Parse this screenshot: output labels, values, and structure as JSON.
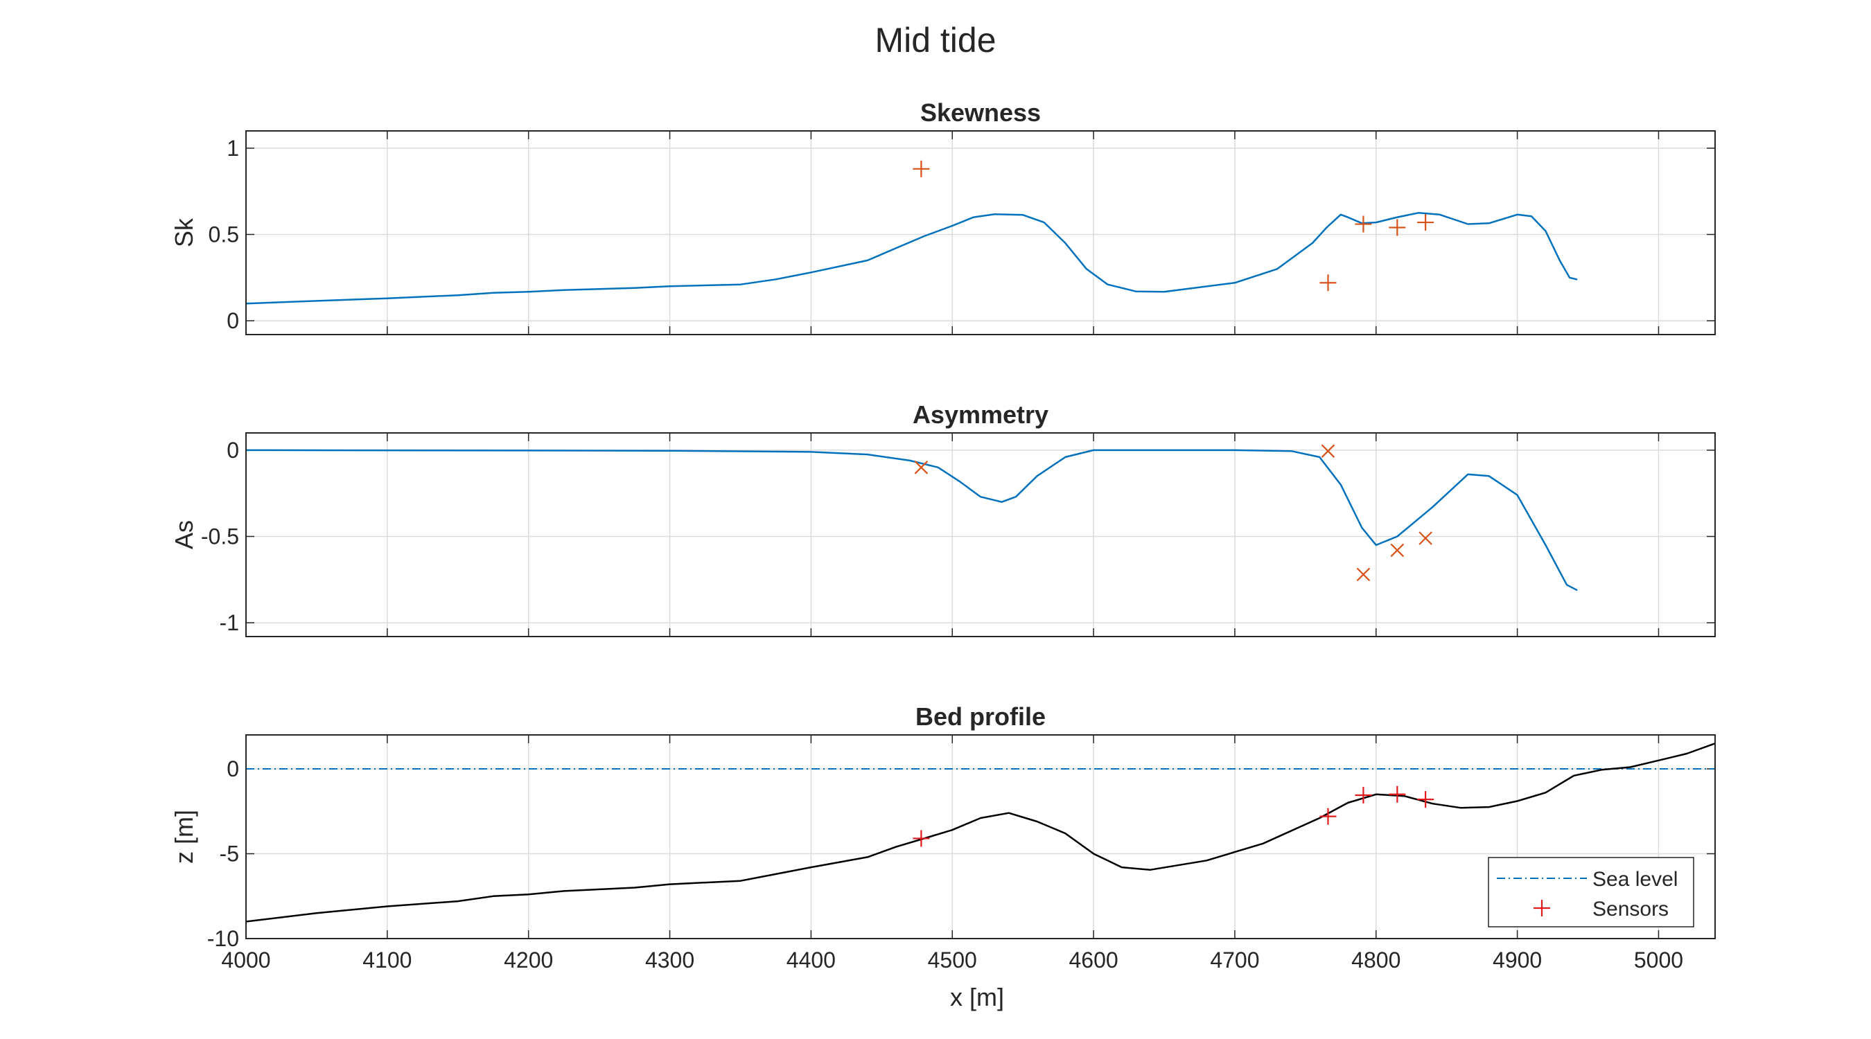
{
  "figure": {
    "title": "Mid tide",
    "xlabel": "x [m]"
  },
  "chart_data": [
    {
      "type": "line",
      "title": "Skewness",
      "xlabel": "",
      "ylabel": "Sk",
      "xlim": [
        4000,
        5040
      ],
      "ylim": [
        -0.08,
        1.1
      ],
      "xticks": [
        4000,
        4100,
        4200,
        4300,
        4400,
        4500,
        4600,
        4700,
        4800,
        4900,
        5000
      ],
      "yticks": [
        0,
        0.5,
        1
      ],
      "ytick_labels": [
        "0",
        "0.5",
        "1"
      ],
      "grid": true,
      "series": [
        {
          "kind": "line",
          "color": "#0072BD",
          "points": [
            [
              4000,
              0.1
            ],
            [
              4050,
              0.115
            ],
            [
              4100,
              0.13
            ],
            [
              4150,
              0.148
            ],
            [
              4175,
              0.162
            ],
            [
              4200,
              0.168
            ],
            [
              4225,
              0.178
            ],
            [
              4275,
              0.19
            ],
            [
              4300,
              0.2
            ],
            [
              4350,
              0.21
            ],
            [
              4375,
              0.24
            ],
            [
              4400,
              0.28
            ],
            [
              4440,
              0.35
            ],
            [
              4460,
              0.42
            ],
            [
              4480,
              0.49
            ],
            [
              4500,
              0.55
            ],
            [
              4515,
              0.6
            ],
            [
              4530,
              0.617
            ],
            [
              4550,
              0.613
            ],
            [
              4565,
              0.57
            ],
            [
              4580,
              0.45
            ],
            [
              4595,
              0.3
            ],
            [
              4610,
              0.21
            ],
            [
              4630,
              0.17
            ],
            [
              4650,
              0.168
            ],
            [
              4700,
              0.22
            ],
            [
              4730,
              0.3
            ],
            [
              4755,
              0.45
            ],
            [
              4765,
              0.54
            ],
            [
              4775,
              0.615
            ],
            [
              4780,
              0.6
            ],
            [
              4790,
              0.565
            ],
            [
              4800,
              0.57
            ],
            [
              4815,
              0.6
            ],
            [
              4830,
              0.625
            ],
            [
              4845,
              0.615
            ],
            [
              4865,
              0.56
            ],
            [
              4880,
              0.565
            ],
            [
              4900,
              0.615
            ],
            [
              4910,
              0.605
            ],
            [
              4920,
              0.52
            ],
            [
              4930,
              0.35
            ],
            [
              4937,
              0.25
            ],
            [
              4942,
              0.24
            ]
          ]
        },
        {
          "kind": "markers",
          "marker": "+",
          "color": "#D95319",
          "points": [
            [
              4478,
              0.88
            ],
            [
              4766,
              0.22
            ],
            [
              4791,
              0.56
            ],
            [
              4815,
              0.54
            ],
            [
              4835,
              0.57
            ]
          ]
        }
      ]
    },
    {
      "type": "line",
      "title": "Asymmetry",
      "xlabel": "",
      "ylabel": "As",
      "xlim": [
        4000,
        5040
      ],
      "ylim": [
        -1.08,
        0.1
      ],
      "xticks": [
        4000,
        4100,
        4200,
        4300,
        4400,
        4500,
        4600,
        4700,
        4800,
        4900,
        5000
      ],
      "yticks": [
        -1,
        -0.5,
        0
      ],
      "ytick_labels": [
        "-1",
        "-0.5",
        "0"
      ],
      "grid": true,
      "series": [
        {
          "kind": "line",
          "color": "#0072BD",
          "points": [
            [
              4000,
              0
            ],
            [
              4300,
              -0.003
            ],
            [
              4400,
              -0.01
            ],
            [
              4440,
              -0.025
            ],
            [
              4470,
              -0.06
            ],
            [
              4490,
              -0.1
            ],
            [
              4505,
              -0.18
            ],
            [
              4520,
              -0.27
            ],
            [
              4535,
              -0.3
            ],
            [
              4545,
              -0.27
            ],
            [
              4560,
              -0.15
            ],
            [
              4580,
              -0.04
            ],
            [
              4600,
              0
            ],
            [
              4700,
              0
            ],
            [
              4740,
              -0.005
            ],
            [
              4760,
              -0.04
            ],
            [
              4775,
              -0.2
            ],
            [
              4790,
              -0.45
            ],
            [
              4800,
              -0.55
            ],
            [
              4815,
              -0.5
            ],
            [
              4840,
              -0.33
            ],
            [
              4865,
              -0.14
            ],
            [
              4880,
              -0.15
            ],
            [
              4900,
              -0.26
            ],
            [
              4920,
              -0.55
            ],
            [
              4935,
              -0.78
            ],
            [
              4942,
              -0.81
            ]
          ]
        },
        {
          "kind": "markers",
          "marker": "x",
          "color": "#D95319",
          "points": [
            [
              4478,
              -0.1
            ],
            [
              4766,
              -0.005
            ],
            [
              4791,
              -0.72
            ],
            [
              4815,
              -0.58
            ],
            [
              4835,
              -0.51
            ]
          ]
        }
      ]
    },
    {
      "type": "line",
      "title": "Bed profile",
      "xlabel": "x [m]",
      "ylabel": "z [m]",
      "xlim": [
        4000,
        5040
      ],
      "ylim": [
        -10,
        2
      ],
      "xticks": [
        4000,
        4100,
        4200,
        4300,
        4400,
        4500,
        4600,
        4700,
        4800,
        4900,
        5000
      ],
      "yticks": [
        -10,
        -5,
        0
      ],
      "ytick_labels": [
        "-10",
        "-5",
        "0"
      ],
      "grid": true,
      "legend": {
        "position": "bottom-right",
        "entries": [
          "Sea level",
          "Sensors"
        ]
      },
      "series": [
        {
          "kind": "line",
          "name": "Sea level",
          "dash": "dashdot",
          "color": "#0072BD",
          "points": [
            [
              4000,
              0
            ],
            [
              5040,
              0
            ]
          ]
        },
        {
          "kind": "line",
          "color": "#000000",
          "points": [
            [
              4000,
              -9
            ],
            [
              4050,
              -8.5
            ],
            [
              4100,
              -8.1
            ],
            [
              4150,
              -7.8
            ],
            [
              4175,
              -7.5
            ],
            [
              4200,
              -7.4
            ],
            [
              4225,
              -7.2
            ],
            [
              4275,
              -7
            ],
            [
              4300,
              -6.8
            ],
            [
              4350,
              -6.6
            ],
            [
              4400,
              -5.8
            ],
            [
              4440,
              -5.2
            ],
            [
              4460,
              -4.6
            ],
            [
              4480,
              -4.1
            ],
            [
              4500,
              -3.6
            ],
            [
              4520,
              -2.9
            ],
            [
              4540,
              -2.6
            ],
            [
              4560,
              -3.1
            ],
            [
              4580,
              -3.8
            ],
            [
              4600,
              -5
            ],
            [
              4620,
              -5.8
            ],
            [
              4640,
              -5.95
            ],
            [
              4680,
              -5.4
            ],
            [
              4720,
              -4.4
            ],
            [
              4760,
              -2.9
            ],
            [
              4780,
              -2
            ],
            [
              4800,
              -1.5
            ],
            [
              4820,
              -1.6
            ],
            [
              4840,
              -2.05
            ],
            [
              4860,
              -2.3
            ],
            [
              4880,
              -2.25
            ],
            [
              4900,
              -1.9
            ],
            [
              4920,
              -1.4
            ],
            [
              4940,
              -0.4
            ],
            [
              4960,
              -0.05
            ],
            [
              4980,
              0.1
            ],
            [
              5000,
              0.5
            ],
            [
              5020,
              0.9
            ],
            [
              5040,
              1.5
            ]
          ]
        },
        {
          "kind": "markers",
          "name": "Sensors",
          "marker": "+",
          "color": "#E31A1C",
          "points": [
            [
              4478,
              -4.1
            ],
            [
              4766,
              -2.8
            ],
            [
              4791,
              -1.55
            ],
            [
              4815,
              -1.5
            ],
            [
              4835,
              -1.8
            ]
          ]
        }
      ]
    }
  ]
}
